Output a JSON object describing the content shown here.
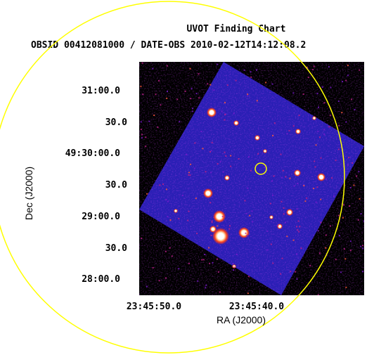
{
  "title": {
    "line1": "UVOT Finding Chart",
    "line2": "OBSID 00412081000 / DATE-OBS 2010-02-12T14:12:08.2"
  },
  "axes": {
    "xlabel": "RA (J2000)",
    "ylabel": "Dec (J2000)"
  },
  "chart_data": {
    "type": "image",
    "x_ticks": [
      "23:45:50.0",
      "23:45:40.0"
    ],
    "y_ticks": [
      "31:00.0",
      "30.0",
      "49:30:00.0",
      "30.0",
      "29:00.0",
      "30.0",
      "28:00.0"
    ]
  },
  "colors": {
    "background": "#ffffff",
    "image_field": "#000000",
    "sky": "#2a1fb5",
    "circle": "#ffff00",
    "star_core": "#ffffff",
    "star_halo": "#ff3a1a"
  }
}
